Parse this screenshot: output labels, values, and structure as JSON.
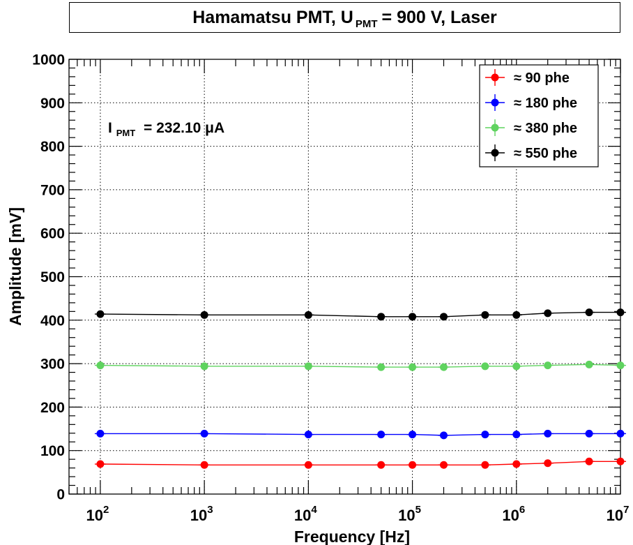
{
  "title": {
    "prefix": "Hamamatsu PMT, U",
    "subscript": "PMT",
    "suffix": "= 900 V, Laser"
  },
  "annotation": {
    "symbol": "I",
    "subscript": "PMT",
    "text": "= 232.10 μA"
  },
  "chart_data": {
    "type": "line",
    "xlabel": "Frequency [Hz]",
    "ylabel": "Amplitude [mV]",
    "x_scale": "log",
    "xlim": [
      50,
      10000000
    ],
    "ylim": [
      0,
      1000
    ],
    "x_ticks": [
      100,
      1000,
      10000,
      100000,
      1000000,
      10000000
    ],
    "x_tick_labels": [
      {
        "base": "10",
        "exp": "2"
      },
      {
        "base": "10",
        "exp": "3"
      },
      {
        "base": "10",
        "exp": "4"
      },
      {
        "base": "10",
        "exp": "5"
      },
      {
        "base": "10",
        "exp": "6"
      },
      {
        "base": "10",
        "exp": "7"
      }
    ],
    "y_ticks": [
      0,
      100,
      200,
      300,
      400,
      500,
      600,
      700,
      800,
      900,
      1000
    ],
    "y_tick_labels": [
      "0",
      "100",
      "200",
      "300",
      "400",
      "500",
      "600",
      "700",
      "800",
      "900",
      "1000"
    ],
    "grid": true,
    "legend_position": "top-right",
    "x": [
      100,
      1000,
      10000,
      50000,
      100000,
      200000,
      500000,
      1000000,
      2000000,
      5000000,
      10000000
    ],
    "series": [
      {
        "name": "≈ 90 phe",
        "color": "#ff0000",
        "values": [
          69,
          67,
          67,
          67,
          67,
          67,
          67,
          69,
          71,
          75,
          75
        ]
      },
      {
        "name": "≈ 180 phe",
        "color": "#0000ff",
        "values": [
          139,
          139,
          137,
          137,
          137,
          135,
          137,
          137,
          139,
          139,
          139
        ]
      },
      {
        "name": "≈ 380 phe",
        "color": "#5fd35f",
        "values": [
          296,
          294,
          294,
          292,
          292,
          292,
          294,
          294,
          296,
          298,
          296
        ]
      },
      {
        "name": "≈ 550 phe",
        "color": "#000000",
        "values": [
          414,
          412,
          412,
          408,
          408,
          408,
          412,
          412,
          416,
          418,
          418
        ]
      }
    ]
  }
}
